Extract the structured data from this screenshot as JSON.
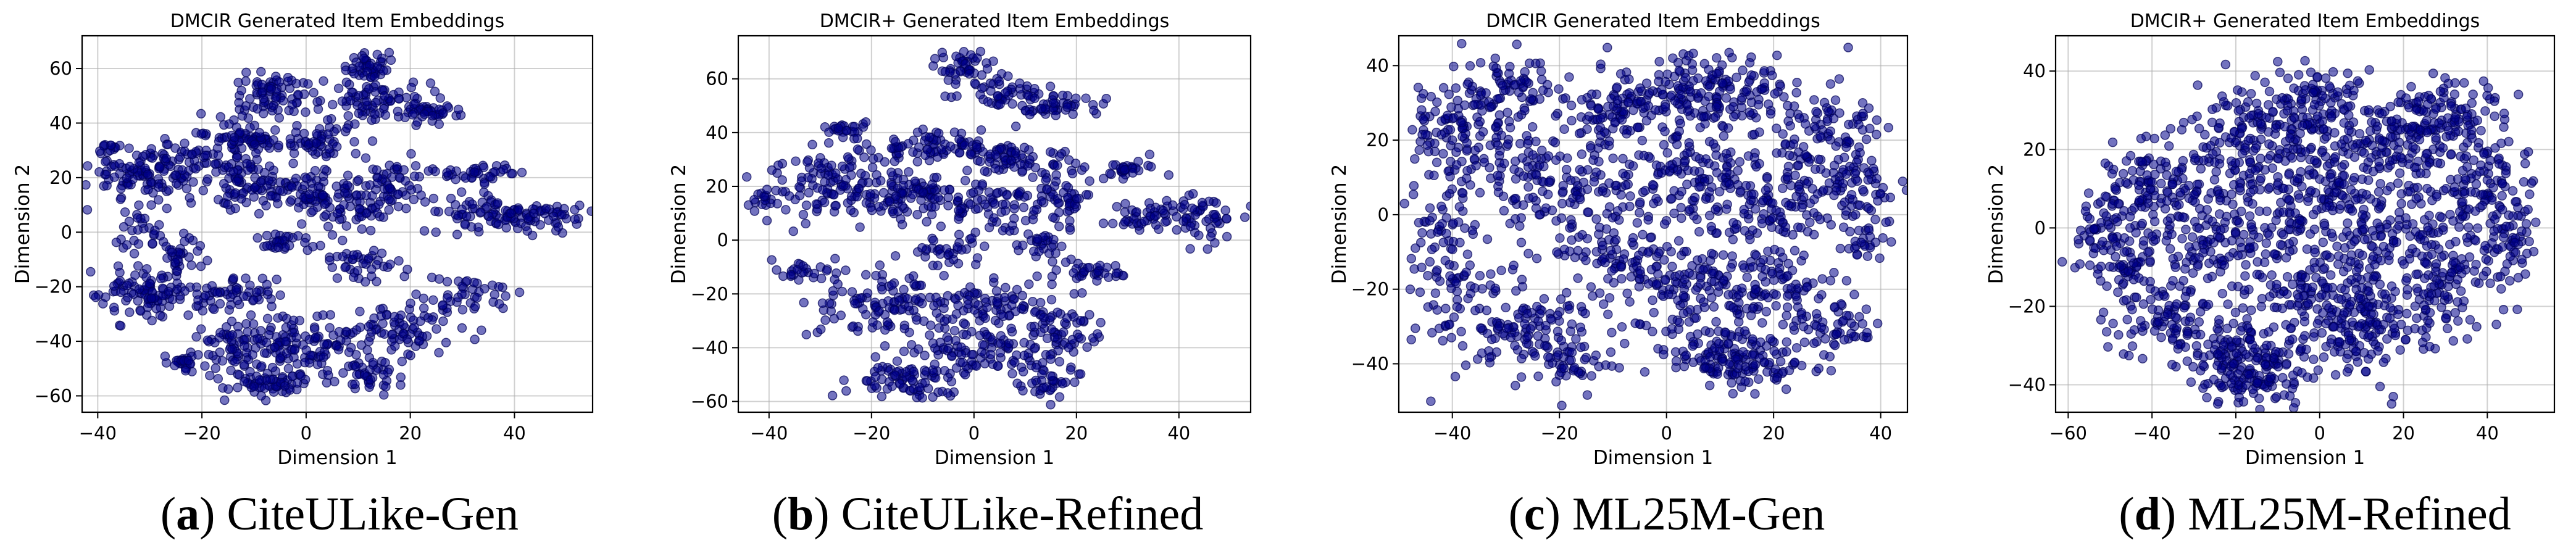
{
  "chart_data": [
    {
      "type": "scatter",
      "title": "DMCIR Generated Item Embeddings",
      "xlabel": "Dimension 1",
      "ylabel": "Dimension 2",
      "xlim": [
        -43,
        55
      ],
      "ylim": [
        -66,
        72
      ],
      "xticks": [
        -40,
        -20,
        0,
        20,
        40
      ],
      "yticks": [
        -60,
        -40,
        -20,
        0,
        20,
        40,
        60
      ],
      "grid": true,
      "color": "#00008B",
      "clusters": [
        {
          "x": -38,
          "y": 31,
          "sx": 1.2,
          "sy": 1.2,
          "n": 12
        },
        {
          "x": -30,
          "y": 22,
          "sx": 6,
          "sy": 5,
          "n": 120
        },
        {
          "x": -18,
          "y": 27,
          "sx": 4,
          "sy": 6,
          "n": 70
        },
        {
          "x": -11,
          "y": 34,
          "sx": 3,
          "sy": 2,
          "n": 45
        },
        {
          "x": -6,
          "y": 50,
          "sx": 4,
          "sy": 4,
          "n": 75
        },
        {
          "x": 2,
          "y": 33,
          "sx": 5,
          "sy": 3,
          "n": 60
        },
        {
          "x": 12,
          "y": 61,
          "sx": 2,
          "sy": 3,
          "n": 45
        },
        {
          "x": 13,
          "y": 48,
          "sx": 5,
          "sy": 4,
          "n": 80
        },
        {
          "x": 24,
          "y": 44,
          "sx": 3,
          "sy": 1.5,
          "n": 35
        },
        {
          "x": -1,
          "y": 15,
          "sx": 5,
          "sy": 4,
          "n": 70
        },
        {
          "x": -12,
          "y": 17,
          "sx": 3,
          "sy": 5,
          "n": 45
        },
        {
          "x": 9,
          "y": 11,
          "sx": 4,
          "sy": 6,
          "n": 60
        },
        {
          "x": 17,
          "y": 17,
          "sx": 3,
          "sy": 6,
          "n": 55
        },
        {
          "x": 33,
          "y": 22,
          "sx": 4,
          "sy": 1.5,
          "n": 40
        },
        {
          "x": 32,
          "y": 7,
          "sx": 4,
          "sy": 4,
          "n": 50
        },
        {
          "x": 45,
          "y": 6,
          "sx": 5,
          "sy": 3,
          "n": 70
        },
        {
          "x": -32,
          "y": 0,
          "sx": 2,
          "sy": 4,
          "n": 25
        },
        {
          "x": -24,
          "y": -7,
          "sx": 3,
          "sy": 3,
          "n": 30
        },
        {
          "x": -30,
          "y": -23,
          "sx": 5,
          "sy": 5,
          "n": 100
        },
        {
          "x": -5,
          "y": -4,
          "sx": 3,
          "sy": 2,
          "n": 30
        },
        {
          "x": 12,
          "y": -12,
          "sx": 5,
          "sy": 3,
          "n": 40
        },
        {
          "x": -15,
          "y": -22,
          "sx": 6,
          "sy": 3,
          "n": 55
        },
        {
          "x": -24,
          "y": -47,
          "sx": 2,
          "sy": 2,
          "n": 25
        },
        {
          "x": -9,
          "y": -40,
          "sx": 6,
          "sy": 5,
          "n": 110
        },
        {
          "x": -7,
          "y": -55,
          "sx": 6,
          "sy": 2.5,
          "n": 70
        },
        {
          "x": 4,
          "y": -42,
          "sx": 4,
          "sy": 6,
          "n": 60
        },
        {
          "x": 19,
          "y": -35,
          "sx": 6,
          "sy": 5,
          "n": 80
        },
        {
          "x": 13,
          "y": -53,
          "sx": 3,
          "sy": 3,
          "n": 40
        },
        {
          "x": 31,
          "y": -22,
          "sx": 4,
          "sy": 3,
          "n": 35
        }
      ]
    },
    {
      "type": "scatter",
      "title": "DMCIR+ Generated Item Embeddings",
      "xlabel": "Dimension 1",
      "ylabel": "Dimension 2",
      "xlim": [
        -46,
        54
      ],
      "ylim": [
        -64,
        76
      ],
      "xticks": [
        -40,
        -20,
        0,
        20,
        40
      ],
      "yticks": [
        -60,
        -40,
        -20,
        0,
        20,
        40,
        60
      ],
      "grid": true,
      "color": "#00008B",
      "clusters": [
        {
          "x": -41,
          "y": 16,
          "sx": 1.2,
          "sy": 1.5,
          "n": 12
        },
        {
          "x": -2,
          "y": 65,
          "sx": 2.5,
          "sy": 3,
          "n": 40
        },
        {
          "x": 6,
          "y": 55,
          "sx": 4,
          "sy": 3,
          "n": 50
        },
        {
          "x": 16,
          "y": 50,
          "sx": 4,
          "sy": 2,
          "n": 45
        },
        {
          "x": -25,
          "y": 41,
          "sx": 2,
          "sy": 2,
          "n": 25
        },
        {
          "x": -8,
          "y": 35,
          "sx": 8,
          "sy": 3,
          "n": 90
        },
        {
          "x": 9,
          "y": 30,
          "sx": 5,
          "sy": 4,
          "n": 60
        },
        {
          "x": -28,
          "y": 20,
          "sx": 6,
          "sy": 6,
          "n": 110
        },
        {
          "x": -13,
          "y": 17,
          "sx": 5,
          "sy": 5,
          "n": 90
        },
        {
          "x": 3,
          "y": 13,
          "sx": 5,
          "sy": 5,
          "n": 70
        },
        {
          "x": 17,
          "y": 15,
          "sx": 3,
          "sy": 5,
          "n": 50
        },
        {
          "x": 30,
          "y": 27,
          "sx": 2.5,
          "sy": 2,
          "n": 30
        },
        {
          "x": 32,
          "y": 9,
          "sx": 3,
          "sy": 3,
          "n": 35
        },
        {
          "x": 44,
          "y": 8,
          "sx": 5,
          "sy": 4,
          "n": 60
        },
        {
          "x": -5,
          "y": -4,
          "sx": 3,
          "sy": 3,
          "n": 35
        },
        {
          "x": 13,
          "y": -2,
          "sx": 3,
          "sy": 3,
          "n": 30
        },
        {
          "x": -33,
          "y": -12,
          "sx": 3,
          "sy": 2,
          "n": 25
        },
        {
          "x": -18,
          "y": -24,
          "sx": 7,
          "sy": 6,
          "n": 110
        },
        {
          "x": 23,
          "y": -12,
          "sx": 4,
          "sy": 2,
          "n": 35
        },
        {
          "x": 2,
          "y": -25,
          "sx": 5,
          "sy": 5,
          "n": 70
        },
        {
          "x": -14,
          "y": -52,
          "sx": 5,
          "sy": 4,
          "n": 75
        },
        {
          "x": 0,
          "y": -42,
          "sx": 6,
          "sy": 5,
          "n": 90
        },
        {
          "x": 17,
          "y": -33,
          "sx": 4,
          "sy": 6,
          "n": 70
        },
        {
          "x": 15,
          "y": -53,
          "sx": 3,
          "sy": 3,
          "n": 40
        }
      ]
    },
    {
      "type": "scatter",
      "title": "DMCIR Generated Item Embeddings",
      "xlabel": "Dimension 1",
      "ylabel": "Dimension 2",
      "xlim": [
        -50,
        45
      ],
      "ylim": [
        -53,
        48
      ],
      "xticks": [
        -40,
        -20,
        0,
        20,
        40
      ],
      "yticks": [
        -40,
        -20,
        0,
        20,
        40
      ],
      "grid": true,
      "color": "#00008B",
      "clusters": [
        {
          "x": -38,
          "y": 22,
          "sx": 6,
          "sy": 8,
          "n": 130
        },
        {
          "x": -30,
          "y": 35,
          "sx": 5,
          "sy": 4,
          "n": 60
        },
        {
          "x": -40,
          "y": -15,
          "sx": 4,
          "sy": 12,
          "n": 110
        },
        {
          "x": -22,
          "y": 8,
          "sx": 7,
          "sy": 8,
          "n": 120
        },
        {
          "x": -10,
          "y": 28,
          "sx": 6,
          "sy": 6,
          "n": 100
        },
        {
          "x": 3,
          "y": 33,
          "sx": 5,
          "sy": 5,
          "n": 80
        },
        {
          "x": 15,
          "y": 33,
          "sx": 6,
          "sy": 5,
          "n": 90
        },
        {
          "x": 30,
          "y": 18,
          "sx": 6,
          "sy": 8,
          "n": 110
        },
        {
          "x": 36,
          "y": 0,
          "sx": 4,
          "sy": 8,
          "n": 80
        },
        {
          "x": 2,
          "y": 12,
          "sx": 8,
          "sy": 7,
          "n": 130
        },
        {
          "x": 18,
          "y": 5,
          "sx": 7,
          "sy": 7,
          "n": 120
        },
        {
          "x": -10,
          "y": -10,
          "sx": 8,
          "sy": 7,
          "n": 120
        },
        {
          "x": -25,
          "y": -30,
          "sx": 6,
          "sy": 6,
          "n": 100
        },
        {
          "x": -18,
          "y": -40,
          "sx": 4,
          "sy": 3,
          "n": 45
        },
        {
          "x": 5,
          "y": -22,
          "sx": 7,
          "sy": 6,
          "n": 110
        },
        {
          "x": 8,
          "y": -38,
          "sx": 5,
          "sy": 4,
          "n": 70
        },
        {
          "x": 20,
          "y": -20,
          "sx": 6,
          "sy": 6,
          "n": 100
        },
        {
          "x": 18,
          "y": -40,
          "sx": 5,
          "sy": 4,
          "n": 80
        },
        {
          "x": 32,
          "y": -30,
          "sx": 4,
          "sy": 4,
          "n": 45
        }
      ]
    },
    {
      "type": "scatter",
      "title": "DMCIR+ Generated Item Embeddings",
      "xlabel": "Dimension 1",
      "ylabel": "Dimension 2",
      "xlim": [
        -63,
        56
      ],
      "ylim": [
        -47,
        49
      ],
      "xticks": [
        -60,
        -40,
        -20,
        0,
        20,
        40
      ],
      "yticks": [
        -40,
        -20,
        0,
        20,
        40
      ],
      "grid": true,
      "color": "#00008B",
      "clusters": [
        {
          "x": -48,
          "y": -5,
          "sx": 5,
          "sy": 8,
          "n": 120
        },
        {
          "x": -40,
          "y": 12,
          "sx": 6,
          "sy": 6,
          "n": 90
        },
        {
          "x": -38,
          "y": -22,
          "sx": 6,
          "sy": 5,
          "n": 80
        },
        {
          "x": -25,
          "y": 2,
          "sx": 8,
          "sy": 10,
          "n": 180
        },
        {
          "x": -15,
          "y": 25,
          "sx": 8,
          "sy": 6,
          "n": 120
        },
        {
          "x": -20,
          "y": -32,
          "sx": 8,
          "sy": 5,
          "n": 140
        },
        {
          "x": -15,
          "y": -40,
          "sx": 6,
          "sy": 3,
          "n": 60
        },
        {
          "x": 0,
          "y": 33,
          "sx": 6,
          "sy": 5,
          "n": 90
        },
        {
          "x": -3,
          "y": 8,
          "sx": 8,
          "sy": 8,
          "n": 160
        },
        {
          "x": 0,
          "y": -18,
          "sx": 8,
          "sy": 7,
          "n": 140
        },
        {
          "x": 15,
          "y": 22,
          "sx": 7,
          "sy": 6,
          "n": 120
        },
        {
          "x": 18,
          "y": 0,
          "sx": 8,
          "sy": 8,
          "n": 150
        },
        {
          "x": 30,
          "y": 28,
          "sx": 7,
          "sy": 6,
          "n": 110
        },
        {
          "x": 40,
          "y": 10,
          "sx": 6,
          "sy": 8,
          "n": 120
        },
        {
          "x": 12,
          "y": -25,
          "sx": 8,
          "sy": 6,
          "n": 120
        },
        {
          "x": 30,
          "y": -15,
          "sx": 6,
          "sy": 6,
          "n": 90
        },
        {
          "x": 45,
          "y": -5,
          "sx": 3,
          "sy": 5,
          "n": 40
        }
      ]
    }
  ],
  "captions": [
    {
      "letter": "a",
      "text": "CiteULike-Gen"
    },
    {
      "letter": "b",
      "text": "CiteULike-Refined"
    },
    {
      "letter": "c",
      "text": "ML25M-Gen"
    },
    {
      "letter": "d",
      "text": "ML25M-Refined"
    }
  ]
}
